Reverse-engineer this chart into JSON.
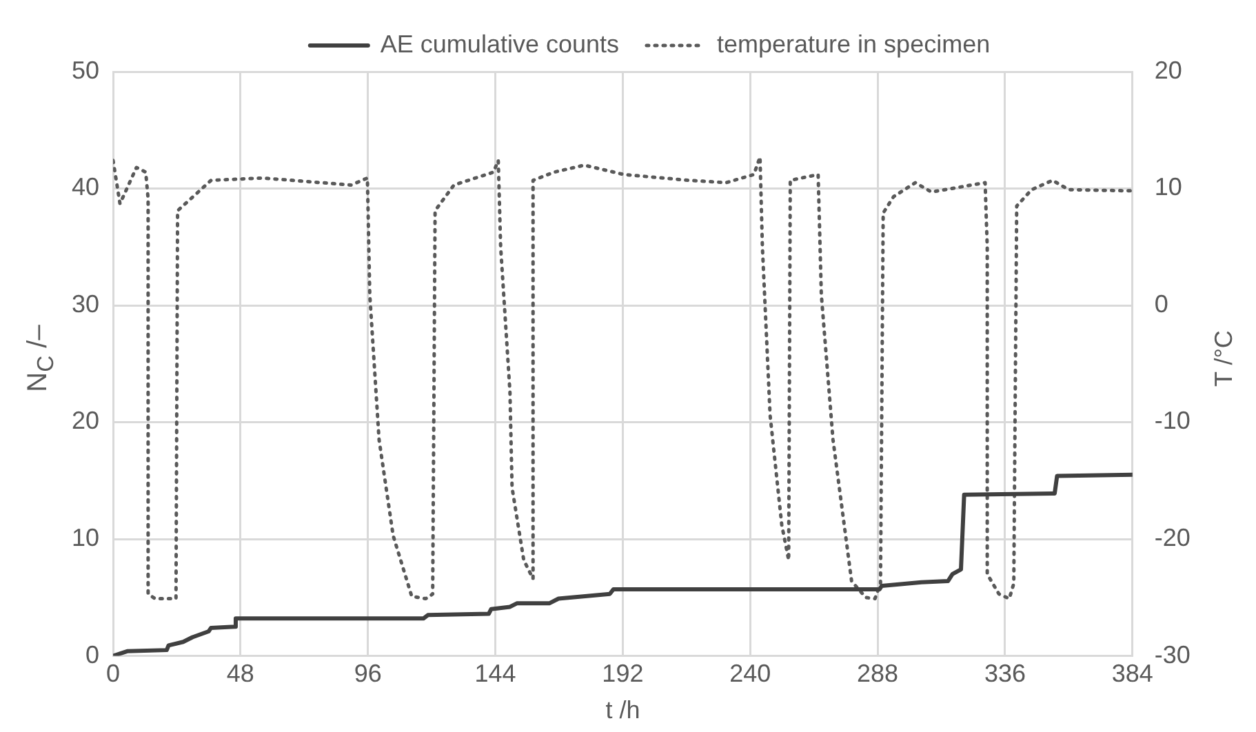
{
  "chart_data": {
    "type": "line",
    "xlabel": "t /h",
    "ylabel": "N$_{C}$ /–",
    "y2label": "T /°C",
    "xlim": [
      0,
      384
    ],
    "xticks": [
      0,
      48,
      96,
      144,
      192,
      240,
      288,
      336,
      384
    ],
    "ylim": [
      0,
      50
    ],
    "yticks": [
      0,
      10,
      20,
      30,
      40,
      50
    ],
    "y2lim": [
      -30,
      20
    ],
    "y2ticks": [
      -30,
      -20,
      -10,
      0,
      10,
      20
    ],
    "grid": true,
    "legend": "top",
    "marker": "none",
    "series": [
      {
        "name": "AE cumulative counts",
        "color": "#404040",
        "line_style": "solid",
        "x": [
          0,
          5.3,
          20.2,
          20.9,
          26.4,
          29.9,
          36,
          36.9,
          45.7,
          46.2,
          116.9,
          118.6,
          141.5,
          142.4,
          149.5,
          152.1,
          164.3,
          167.8,
          187.1,
          188.5,
          288.7,
          289.6,
          304.5,
          314.5,
          316.2,
          319.4,
          320.6,
          354.7,
          355.6,
          384
        ],
        "values": [
          0,
          0.4,
          0.5,
          0.9,
          1.2,
          1.6,
          2.1,
          2.4,
          2.5,
          3.2,
          3.2,
          3.5,
          3.6,
          4.0,
          4.2,
          4.5,
          4.5,
          4.9,
          5.3,
          5.7,
          5.7,
          6.0,
          6.3,
          6.4,
          7.0,
          7.4,
          13.8,
          13.9,
          15.4,
          15.5
        ]
      },
      {
        "name": "temperature in specimen",
        "color": "#595959",
        "line_style": "dotted",
        "axis": "y2",
        "x": [
          0,
          2.6,
          8.8,
          12.3,
          13.2,
          13.2,
          15.8,
          23.7,
          24.3,
          36.9,
          56.3,
          89.7,
          95.8,
          96.7,
          100.2,
          105.5,
          112.5,
          117.8,
          120.4,
          121.3,
          128.4,
          143.3,
          145.1,
          146,
          149.5,
          150.3,
          154.7,
          158.2,
          158.2,
          166.1,
          177.5,
          192.4,
          216.9,
          230.9,
          241.4,
          243.7,
          244.6,
          247.5,
          251.9,
          254.5,
          255.1,
          265.6,
          266.8,
          271.2,
          278.2,
          283.5,
          287,
          289.1,
          290.1,
          294,
          302.2,
          308.3,
          328.5,
          329.3,
          329.3,
          333.7,
          337.6,
          339.3,
          340.4,
          346,
          353.9,
          360,
          383.7
        ],
        "values": [
          12.4,
          8.7,
          11.8,
          11.4,
          9.1,
          -24.7,
          -25.1,
          -25.1,
          8.1,
          10.7,
          10.9,
          10.3,
          10.9,
          0.9,
          -11.5,
          -19.7,
          -24.9,
          -25.1,
          -24.7,
          8.1,
          10.3,
          11.4,
          12.4,
          5,
          -7.4,
          -15.6,
          -21.8,
          -23.4,
          10.7,
          11.4,
          12,
          11.2,
          10.7,
          10.5,
          11.2,
          12.7,
          5,
          -9.4,
          -18.8,
          -21.8,
          10.7,
          11.2,
          0.9,
          -11.5,
          -23.6,
          -25,
          -25.1,
          -23.8,
          7.9,
          9.3,
          10.5,
          9.7,
          10.5,
          5,
          -23,
          -24.7,
          -25.1,
          -23.8,
          8.5,
          9.9,
          10.7,
          9.9,
          9.8
        ]
      }
    ]
  }
}
